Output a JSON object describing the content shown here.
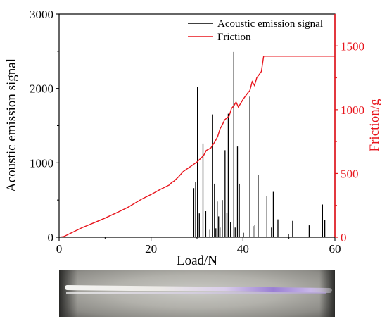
{
  "chart_data": {
    "type": "line",
    "title": "",
    "xlabel": "Load/N",
    "ylabel": "Acoustic emission signal",
    "y2label": "Friction/g",
    "xlim": [
      0,
      60
    ],
    "ylim": [
      0,
      3000
    ],
    "y2lim": [
      0,
      1750
    ],
    "x_ticks": [
      "0",
      "20",
      "40",
      "60"
    ],
    "y_ticks": [
      "0",
      "1000",
      "2000",
      "3000"
    ],
    "y2_ticks": [
      "0",
      "500",
      "1000",
      "1500"
    ],
    "legend": {
      "placement": "top-right",
      "entries": [
        "Acoustic emission signal",
        "Friction"
      ]
    },
    "grid": false,
    "colors": {
      "ae": "#000000",
      "friction": "#e8141c",
      "right_axis": "#e8141c"
    },
    "series": [
      {
        "name": "Acoustic emission signal",
        "axis": "left",
        "style": "spikes",
        "x": [
          29.3,
          29.7,
          30.1,
          30.5,
          31.3,
          31.9,
          32.8,
          33.4,
          33.8,
          34.1,
          34.4,
          34.7,
          35.0,
          35.5,
          36.1,
          36.5,
          36.8,
          37.3,
          38.0,
          38.3,
          38.8,
          39.2,
          40.1,
          41.5,
          42.2,
          42.6,
          43.3,
          45.2,
          46.2,
          46.6,
          47.6,
          49.9,
          50.8,
          54.4,
          57.3,
          57.8
        ],
        "values": [
          660,
          740,
          2020,
          320,
          1260,
          350,
          100,
          1650,
          720,
          120,
          480,
          280,
          130,
          500,
          1170,
          330,
          1660,
          200,
          2490,
          130,
          1220,
          720,
          60,
          1890,
          150,
          170,
          840,
          550,
          130,
          610,
          240,
          40,
          220,
          160,
          440,
          230
        ]
      },
      {
        "name": "Friction",
        "axis": "right",
        "style": "line",
        "x": [
          0,
          1,
          3,
          5,
          8,
          10,
          13,
          15,
          18,
          20,
          22,
          24,
          24.5,
          25,
          26,
          27,
          28,
          29,
          30,
          31,
          31.5,
          32,
          33,
          34,
          34.5,
          35,
          35.5,
          36,
          37,
          37.5,
          38,
          38.5,
          39,
          40,
          41,
          41.5,
          42,
          42.5,
          43,
          44,
          44.5,
          45,
          50,
          55,
          60
        ],
        "values": [
          0,
          5,
          40,
          75,
          120,
          150,
          200,
          235,
          300,
          335,
          375,
          410,
          430,
          440,
          475,
          515,
          540,
          565,
          590,
          625,
          645,
          680,
          700,
          755,
          790,
          850,
          880,
          920,
          950,
          1010,
          1030,
          1060,
          1020,
          1080,
          1130,
          1150,
          1220,
          1190,
          1250,
          1300,
          1420,
          1420,
          1420,
          1420,
          1420
        ]
      }
    ]
  },
  "photo": {
    "caption": ""
  }
}
